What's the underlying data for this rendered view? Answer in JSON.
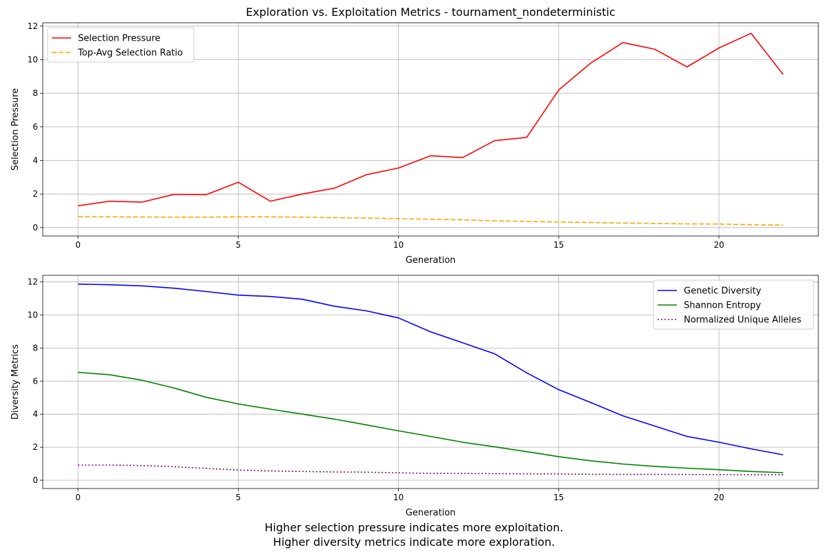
{
  "caption": {
    "line1": "Higher selection pressure indicates more exploitation.",
    "line2": "Higher diversity metrics indicate more exploration."
  },
  "chart_data": [
    {
      "type": "line",
      "title": "Exploration vs. Exploitation Metrics - tournament_nondeterministic",
      "xlabel": "Generation",
      "ylabel": "Selection Pressure",
      "xlim": [
        -1.1,
        23.1
      ],
      "ylim": [
        -0.5,
        12.2
      ],
      "xticks": [
        0,
        5,
        10,
        15,
        20
      ],
      "yticks": [
        0,
        2,
        4,
        6,
        8,
        10,
        12
      ],
      "grid": true,
      "legend_position": "top-left",
      "x": [
        0,
        1,
        2,
        3,
        4,
        5,
        6,
        7,
        8,
        9,
        10,
        11,
        12,
        13,
        14,
        15,
        16,
        17,
        18,
        19,
        20,
        21,
        22
      ],
      "series": [
        {
          "name": "Selection Pressure",
          "color": "#ff0000",
          "style": "solid",
          "values": [
            1.3,
            1.57,
            1.52,
            1.98,
            1.96,
            2.7,
            1.57,
            2.0,
            2.35,
            3.15,
            3.55,
            4.28,
            4.17,
            5.18,
            5.37,
            8.2,
            9.8,
            11.02,
            10.62,
            9.57,
            10.7,
            11.57,
            9.12
          ]
        },
        {
          "name": "Top-Avg Selection Ratio",
          "color": "#ffa500",
          "style": "dashed",
          "values": [
            0.65,
            0.64,
            0.63,
            0.62,
            0.62,
            0.64,
            0.64,
            0.62,
            0.59,
            0.57,
            0.53,
            0.5,
            0.46,
            0.4,
            0.37,
            0.33,
            0.3,
            0.27,
            0.25,
            0.22,
            0.21,
            0.17,
            0.15
          ]
        }
      ]
    },
    {
      "type": "line",
      "title": "",
      "xlabel": "Generation",
      "ylabel": "Diversity Metrics",
      "xlim": [
        -1.1,
        23.1
      ],
      "ylim": [
        -0.5,
        12.4
      ],
      "xticks": [
        0,
        5,
        10,
        15,
        20
      ],
      "yticks": [
        0,
        2,
        4,
        6,
        8,
        10,
        12
      ],
      "grid": true,
      "legend_position": "top-right",
      "x": [
        0,
        1,
        2,
        3,
        4,
        5,
        6,
        7,
        8,
        9,
        10,
        11,
        12,
        13,
        14,
        15,
        16,
        17,
        18,
        19,
        20,
        21,
        22
      ],
      "series": [
        {
          "name": "Genetic Diversity",
          "color": "#0000ff",
          "style": "solid",
          "values": [
            11.87,
            11.83,
            11.76,
            11.62,
            11.42,
            11.2,
            11.12,
            10.95,
            10.53,
            10.25,
            9.82,
            8.98,
            8.32,
            7.65,
            6.5,
            5.48,
            4.7,
            3.9,
            3.28,
            2.65,
            2.3,
            1.9,
            1.54
          ]
        },
        {
          "name": "Shannon Entropy",
          "color": "#008000",
          "style": "solid",
          "values": [
            6.53,
            6.38,
            6.05,
            5.58,
            5.02,
            4.62,
            4.3,
            4.0,
            3.7,
            3.35,
            2.99,
            2.65,
            2.3,
            2.02,
            1.73,
            1.43,
            1.18,
            0.98,
            0.84,
            0.73,
            0.64,
            0.53,
            0.46
          ]
        },
        {
          "name": "Normalized Unique Alleles",
          "color": "#800080",
          "style": "dotted",
          "values": [
            0.92,
            0.92,
            0.89,
            0.82,
            0.72,
            0.62,
            0.56,
            0.53,
            0.5,
            0.49,
            0.45,
            0.42,
            0.41,
            0.4,
            0.39,
            0.38,
            0.36,
            0.35,
            0.35,
            0.35,
            0.34,
            0.33,
            0.33
          ]
        }
      ]
    }
  ]
}
